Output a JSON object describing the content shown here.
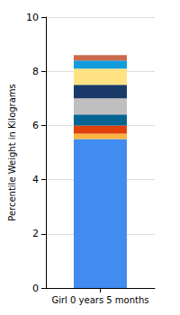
{
  "chart_data": {
    "type": "bar",
    "stacked": true,
    "grid": true,
    "ylabel": "Percentile Weight in Kilograms",
    "categories": [
      "Girl 0 years 5 months"
    ],
    "series": [
      {
        "color": "#418CF0",
        "values": [
          5.5
        ]
      },
      {
        "color": "#FCB441",
        "values": [
          0.2
        ]
      },
      {
        "color": "#E0400A",
        "values": [
          0.3
        ]
      },
      {
        "color": "#056492",
        "values": [
          0.4
        ]
      },
      {
        "color": "#BFBFBF",
        "values": [
          0.6
        ]
      },
      {
        "color": "#1A3B69",
        "values": [
          0.5
        ]
      },
      {
        "color": "#FFE382",
        "values": [
          0.6
        ]
      },
      {
        "color": "#129CDD",
        "values": [
          0.3
        ]
      },
      {
        "color": "#CA6B4B",
        "values": [
          0.2
        ]
      }
    ],
    "ylim": [
      0,
      10
    ],
    "yticks": [
      0,
      2,
      4,
      6,
      8,
      10
    ]
  }
}
